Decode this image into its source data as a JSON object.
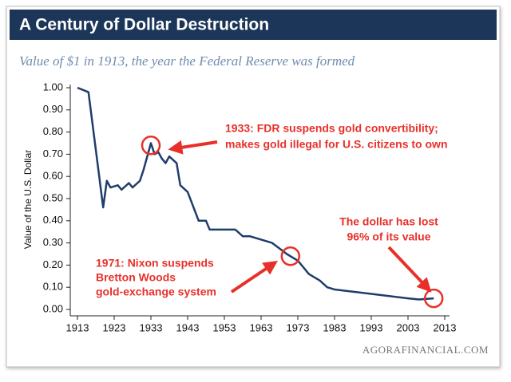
{
  "chart_data": {
    "type": "line",
    "title": "A Century of Dollar Destruction",
    "subtitle": "Value of $1 in 1913, the year the Federal Reserve was formed",
    "y_label": "Value of the U.S. Dollar",
    "source": "AGORAFINANCIAL.COM",
    "x": [
      1913,
      1916,
      1920,
      1921,
      1922,
      1924,
      1925,
      1927,
      1928,
      1930,
      1931,
      1933,
      1934,
      1935,
      1936,
      1937,
      1938,
      1940,
      1941,
      1943,
      1946,
      1948,
      1949,
      1953,
      1956,
      1958,
      1960,
      1962,
      1966,
      1970,
      1973,
      1976,
      1979,
      1981,
      1983,
      1993,
      2003,
      2006,
      2010
    ],
    "series": [
      {
        "name": "Value of $1",
        "color": "#1f3d6b",
        "values": [
          1.0,
          0.98,
          0.46,
          0.58,
          0.55,
          0.56,
          0.54,
          0.57,
          0.55,
          0.58,
          0.63,
          0.75,
          0.7,
          0.71,
          0.68,
          0.66,
          0.69,
          0.66,
          0.56,
          0.53,
          0.4,
          0.4,
          0.36,
          0.36,
          0.36,
          0.33,
          0.33,
          0.32,
          0.3,
          0.25,
          0.22,
          0.16,
          0.13,
          0.1,
          0.09,
          0.07,
          0.05,
          0.045,
          0.05
        ]
      }
    ],
    "xlim": [
      1913,
      2013
    ],
    "xticks": [
      1913,
      1923,
      1933,
      1943,
      1953,
      1963,
      1973,
      1983,
      1993,
      2003,
      2013
    ],
    "ylim": [
      0,
      1
    ],
    "yticks": [
      {
        "value": 0,
        "label": "0.00"
      },
      {
        "value": 0.1,
        "label": "0.10"
      },
      {
        "value": 0.2,
        "label": "0.20"
      },
      {
        "value": 0.3,
        "label": "0.30"
      },
      {
        "value": 0.4,
        "label": "0.40"
      },
      {
        "value": 0.5,
        "label": "0.50"
      },
      {
        "value": 0.6,
        "label": "0.60"
      },
      {
        "value": 0.7,
        "label": "0.70"
      },
      {
        "value": 0.8,
        "label": "0.80"
      },
      {
        "value": 0.9,
        "label": "0.90"
      },
      {
        "value": 1,
        "label": "1.00"
      }
    ],
    "grid": false,
    "annotations": [
      {
        "lines": [
          "1933: FDR suspends gold convertibility;",
          "makes gold illegal for U.S. citizens to own"
        ],
        "x": 1933,
        "y": 0.74
      },
      {
        "lines": [
          "1971: Nixon suspends",
          "Bretton Woods",
          "gold-exchange system"
        ],
        "x": 1971,
        "y": 0.24
      },
      {
        "lines": [
          "The dollar has lost",
          "96% of its value"
        ],
        "x": 2010,
        "y": 0.05
      }
    ],
    "annotation_color": "#e8302a"
  }
}
